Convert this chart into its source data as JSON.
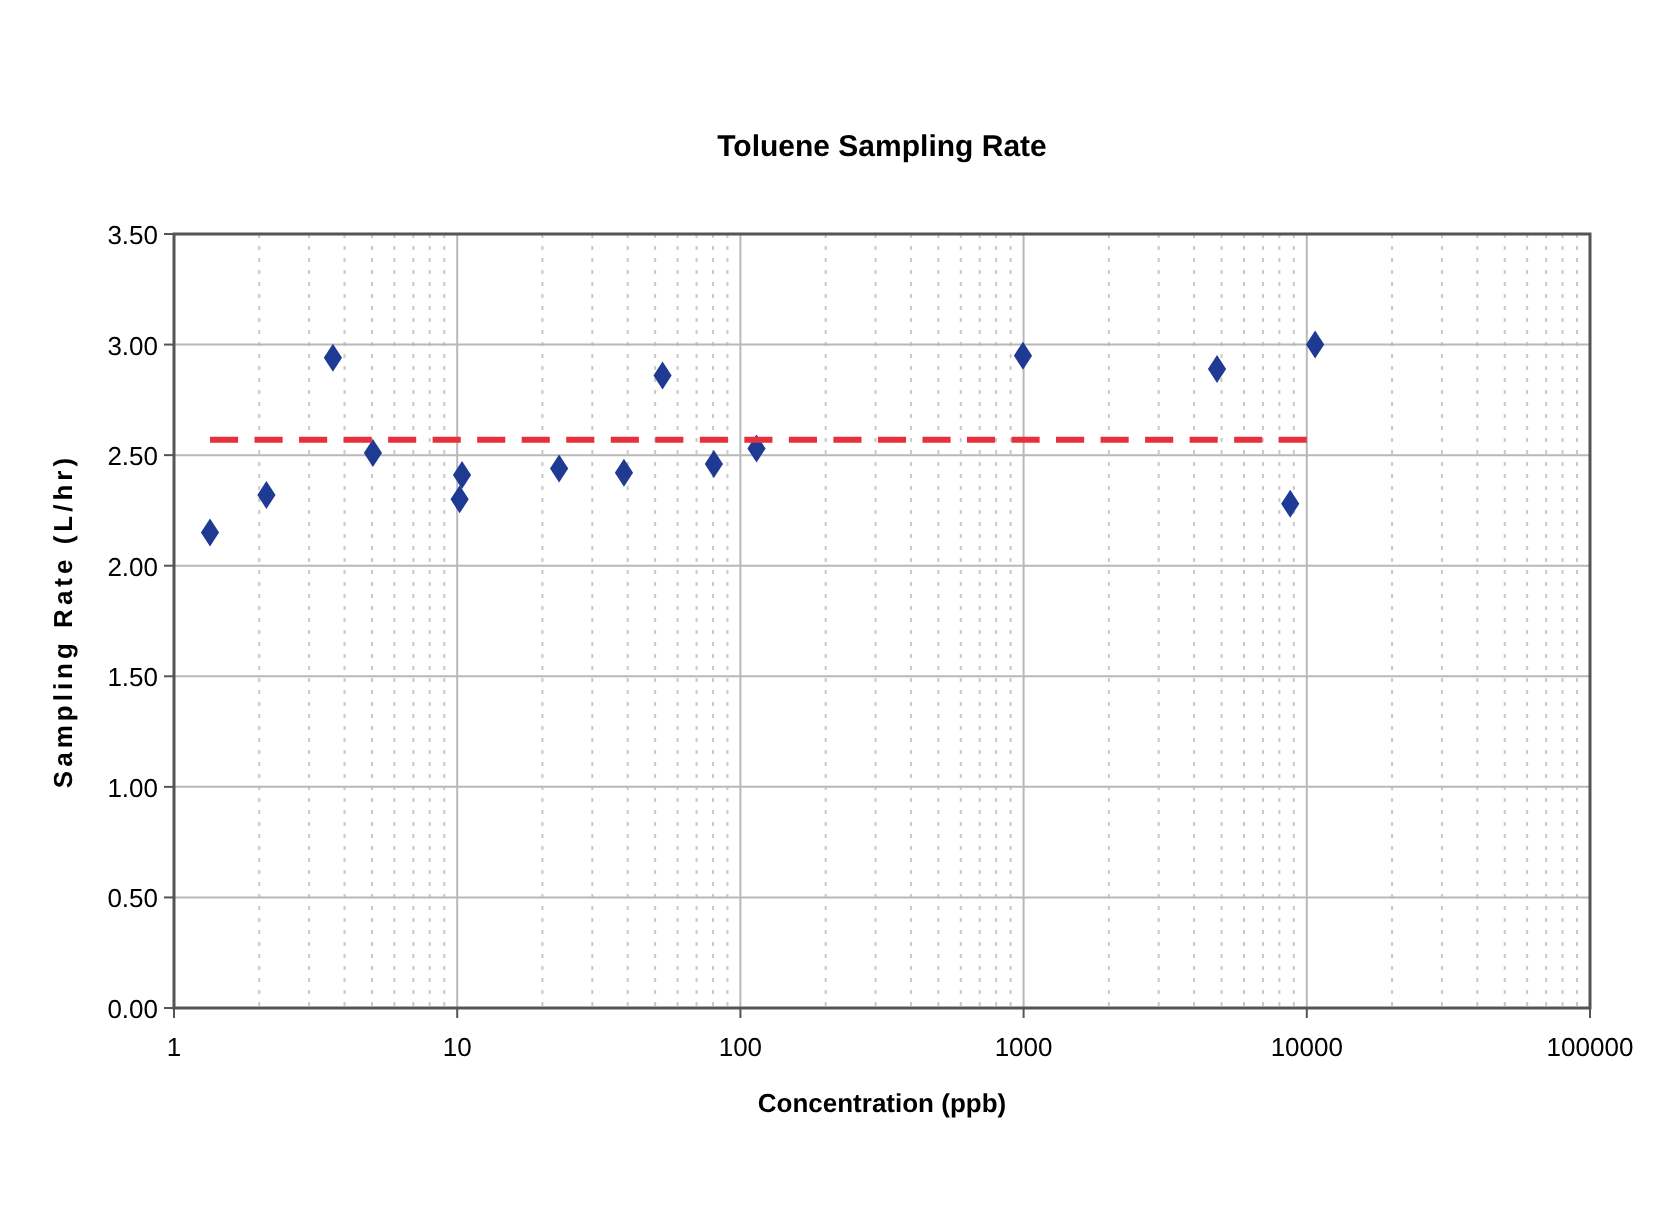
{
  "chart_data": {
    "type": "scatter",
    "title": "Toluene Sampling Rate",
    "xlabel": "Concentration (ppb)",
    "ylabel": "Sampling Rate (L/hr)",
    "log": "x",
    "grid": true,
    "marker": "diamond",
    "xlim": [
      1,
      100000
    ],
    "xticks": [
      1,
      10,
      100,
      1000,
      10000,
      100000
    ],
    "ylim": [
      0,
      3.5
    ],
    "yticks": [
      {
        "value": 0,
        "label": "0.00"
      },
      {
        "value": 0.5,
        "label": "0.50"
      },
      {
        "value": 1,
        "label": "1.00"
      },
      {
        "value": 1.5,
        "label": "1.50"
      },
      {
        "value": 2,
        "label": "2.00"
      },
      {
        "value": 2.5,
        "label": "2.50"
      },
      {
        "value": 3,
        "label": "3.00"
      },
      {
        "value": 3.5,
        "label": "3.50"
      }
    ],
    "series": [
      {
        "color": "#1f3a93",
        "x": [
          1.34,
          2.12,
          3.64,
          5.04,
          10.2,
          10.4,
          22.9,
          38.8,
          53.1,
          80.6,
          114,
          995,
          4820,
          8740,
          10700
        ],
        "values": [
          2.15,
          2.32,
          2.94,
          2.51,
          2.3,
          2.41,
          2.44,
          2.42,
          2.86,
          2.46,
          2.53,
          2.95,
          2.89,
          2.28,
          3.0
        ]
      },
      {
        "type": "line",
        "color": "#e8303c",
        "line_style": "dashed",
        "marker": "none",
        "x": [
          1.34,
          10000
        ],
        "values": [
          2.57,
          2.57
        ]
      }
    ]
  }
}
